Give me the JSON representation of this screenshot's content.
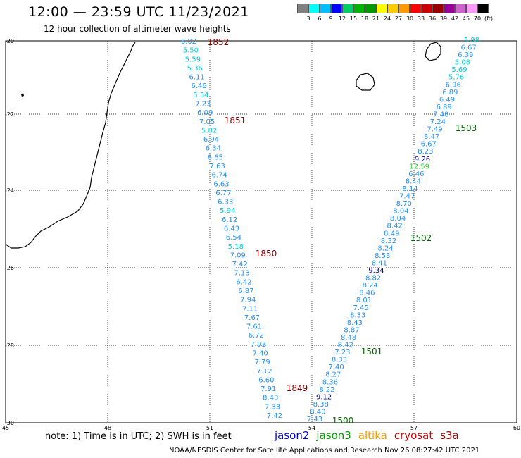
{
  "header": {
    "title": "12:00 — 23:59 UTC 11/23/2021",
    "subtitle": "12 hour collection of altimeter wave heights"
  },
  "colorbar": {
    "colors": [
      "#808080",
      "#00ffff",
      "#00bfff",
      "#0000ff",
      "#00cc66",
      "#00b300",
      "#009900",
      "#ffff00",
      "#ffcc00",
      "#ff9900",
      "#ff0000",
      "#cc0000",
      "#990000",
      "#990099",
      "#cc66cc",
      "#ff99ff",
      "#000000"
    ],
    "labels": [
      "3",
      "6",
      "9",
      "12",
      "15",
      "18",
      "21",
      "24",
      "27",
      "30",
      "33",
      "36",
      "39",
      "42",
      "45",
      "70",
      "(ft)"
    ]
  },
  "map": {
    "x_ticks": [
      "45",
      "48",
      "51",
      "54",
      "57",
      "60"
    ],
    "y_ticks": [
      "-20",
      "-22",
      "-24",
      "-26",
      "-28",
      "-30"
    ],
    "pass_labels": [
      {
        "text": "1852",
        "color": "#8b0000"
      },
      {
        "text": "1851",
        "color": "#8b0000"
      },
      {
        "text": "1850",
        "color": "#8b0000"
      },
      {
        "text": "1849",
        "color": "#8b0000"
      },
      {
        "text": "1503",
        "color": "#006400"
      },
      {
        "text": "1502",
        "color": "#006400"
      },
      {
        "text": "1501",
        "color": "#006400"
      },
      {
        "text": "1500",
        "color": "#006400"
      }
    ],
    "track_left": [
      "6.02",
      "5.50",
      "5.59",
      "5.36",
      "6.11",
      "6.46",
      "5.54",
      "7.23",
      "6.09",
      "7.05",
      "5.82",
      "6.94",
      "6.34",
      "6.65",
      "7.63",
      "6.74",
      "6.63",
      "6.77",
      "6.33",
      "5.94",
      "6.12",
      "6.43",
      "6.54",
      "5.18",
      "7.09",
      "7.42",
      "7.13",
      "6.42",
      "6.87",
      "7.94",
      "7.11",
      "7.67",
      "7.61",
      "6.72",
      "7.03",
      "7.40",
      "7.79",
      "7.12",
      "6.60",
      "7.91",
      "8.43",
      "7.33",
      "7.42"
    ],
    "track_right": [
      "5.98",
      "6.67",
      "6.39",
      "5.08",
      "5.69",
      "5.76",
      "6.96",
      "6.89",
      "6.49",
      "6.89",
      "7.48",
      "7.24",
      "7.49",
      "8.47",
      "6.67",
      "8.23",
      "9.26",
      "12.59",
      "6.46",
      "8.44",
      "8.14",
      "7.47",
      "8.70",
      "8.04",
      "8.04",
      "8.42",
      "8.49",
      "8.32",
      "8.24",
      "8.53",
      "8.41",
      "9.34",
      "8.82",
      "8.24",
      "8.46",
      "8.01",
      "7.45",
      "8.33",
      "8.43",
      "8.87",
      "8.48",
      "8.42",
      "7.23",
      "8.33",
      "7.40",
      "8.27",
      "8.36",
      "8.22",
      "9.12",
      "8.38",
      "8.40",
      "7.43"
    ]
  },
  "footer": {
    "note": "note:  1) Time is in UTC;  2) SWH is in feet",
    "satellites": [
      {
        "name": "jason2",
        "color": "#0000cc"
      },
      {
        "name": "jason3",
        "color": "#009900"
      },
      {
        "name": "altika",
        "color": "#ff9900"
      },
      {
        "name": "cryosat",
        "color": "#cc0000"
      },
      {
        "name": "s3a",
        "color": "#990000"
      }
    ],
    "credit": "NOAA/NESDIS Center for Satellite Applications and Research   Nov 26 08:27:42 UTC 2021"
  }
}
